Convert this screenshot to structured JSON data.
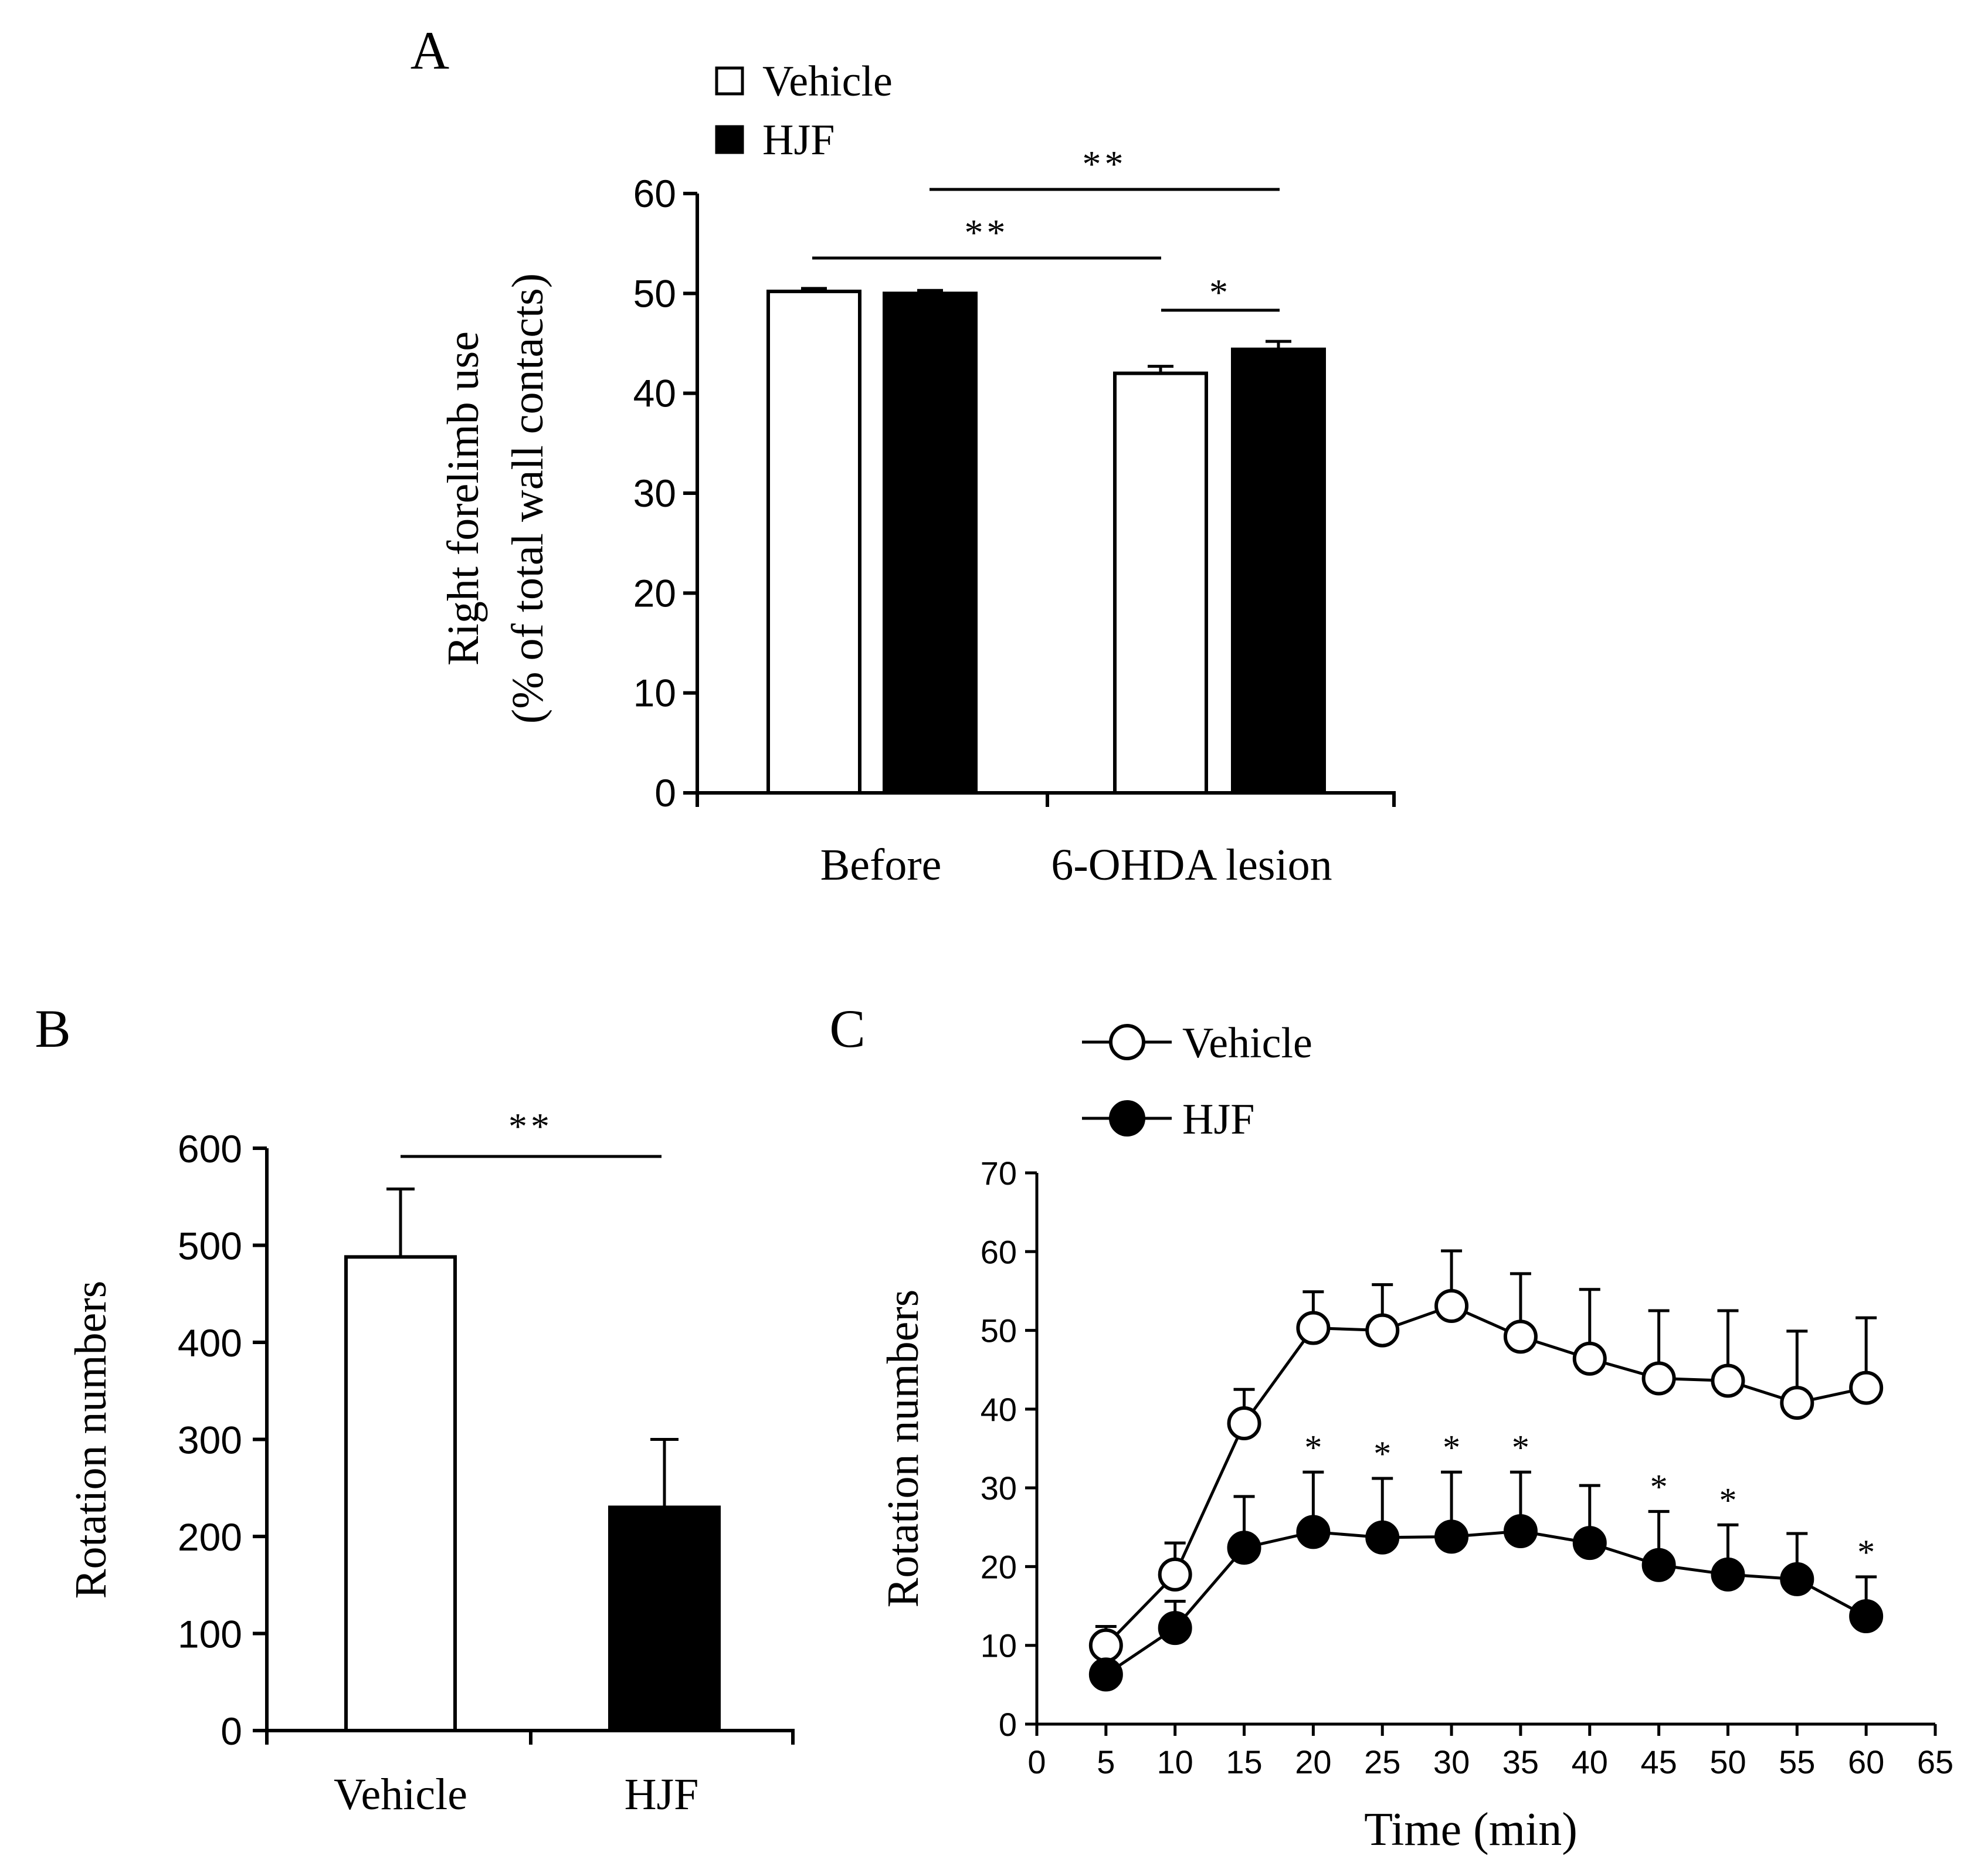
{
  "chart_data": [
    {
      "panel": "A",
      "type": "bar",
      "categories": [
        "Before",
        "6-OHDA  lesion"
      ],
      "series": [
        {
          "name": "Vehicle",
          "fill": "#ffffff",
          "values": [
            50.2,
            42.0
          ],
          "errors": [
            0.3,
            0.7
          ]
        },
        {
          "name": "HJF",
          "fill": "#000000",
          "values": [
            50.0,
            44.4
          ],
          "errors": [
            0.3,
            0.8
          ]
        }
      ],
      "ylabel": "Right forelimb use",
      "ylabel2": "(% of total wall contacts)",
      "yticks": [
        "0",
        "10",
        "20",
        "30",
        "40",
        "50",
        "60"
      ],
      "ylim": [
        0,
        60
      ],
      "legend_position": "top-left",
      "significance": [
        {
          "label": "**",
          "from": "Before/Vehicle",
          "to": "6-OHDA  lesion/Vehicle"
        },
        {
          "label": "**",
          "from": "Before/HJF",
          "to": "6-OHDA  lesion/HJF"
        },
        {
          "label": "*",
          "from": "6-OHDA  lesion/Vehicle",
          "to": "6-OHDA  lesion/HJF"
        }
      ]
    },
    {
      "panel": "B",
      "type": "bar",
      "categories": [
        "Vehicle",
        "HJF"
      ],
      "values": [
        488,
        230
      ],
      "errors": [
        70,
        70
      ],
      "fills": [
        "#ffffff",
        "#000000"
      ],
      "ylabel": "Rotation numbers",
      "yticks": [
        "0",
        "100",
        "200",
        "300",
        "400",
        "500",
        "600"
      ],
      "ylim": [
        0,
        600
      ],
      "significance": [
        {
          "label": "**",
          "from": "Vehicle",
          "to": "HJF"
        }
      ]
    },
    {
      "panel": "C",
      "type": "line",
      "x": [
        5,
        10,
        15,
        20,
        25,
        30,
        35,
        40,
        45,
        50,
        55,
        60
      ],
      "series": [
        {
          "name": "Vehicle",
          "marker": "open-circle",
          "values": [
            10,
            19,
            38.2,
            50.3,
            50,
            53.1,
            49.2,
            46.4,
            43.9,
            43.6,
            40.8,
            42.7
          ],
          "errors": [
            2.4,
            4,
            4.3,
            4.6,
            5.8,
            7,
            8,
            8.8,
            8.6,
            8.9,
            9.1,
            8.9
          ]
        },
        {
          "name": "HJF",
          "marker": "filled-circle",
          "values": [
            6.3,
            12.2,
            22.4,
            24.4,
            23.7,
            23.8,
            24.5,
            23.0,
            20.2,
            19.0,
            18.4,
            13.7
          ],
          "errors": [
            0,
            3.4,
            6.5,
            7.6,
            7.5,
            8.2,
            7.5,
            7.3,
            6.8,
            6.3,
            5.8,
            5.0
          ]
        }
      ],
      "significant_x": [
        20,
        25,
        30,
        35,
        45,
        50,
        60
      ],
      "significance_label": "*",
      "xlabel": "Time (min)",
      "ylabel": "Rotation numbers",
      "xticks": [
        "0",
        "5",
        "10",
        "15",
        "20",
        "25",
        "30",
        "35",
        "40",
        "45",
        "50",
        "55",
        "60",
        "65"
      ],
      "yticks": [
        "0",
        "10",
        "20",
        "30",
        "40",
        "50",
        "60",
        "70"
      ],
      "xlim": [
        0,
        65
      ],
      "ylim": [
        0,
        70
      ],
      "legend_position": "top-left"
    }
  ]
}
